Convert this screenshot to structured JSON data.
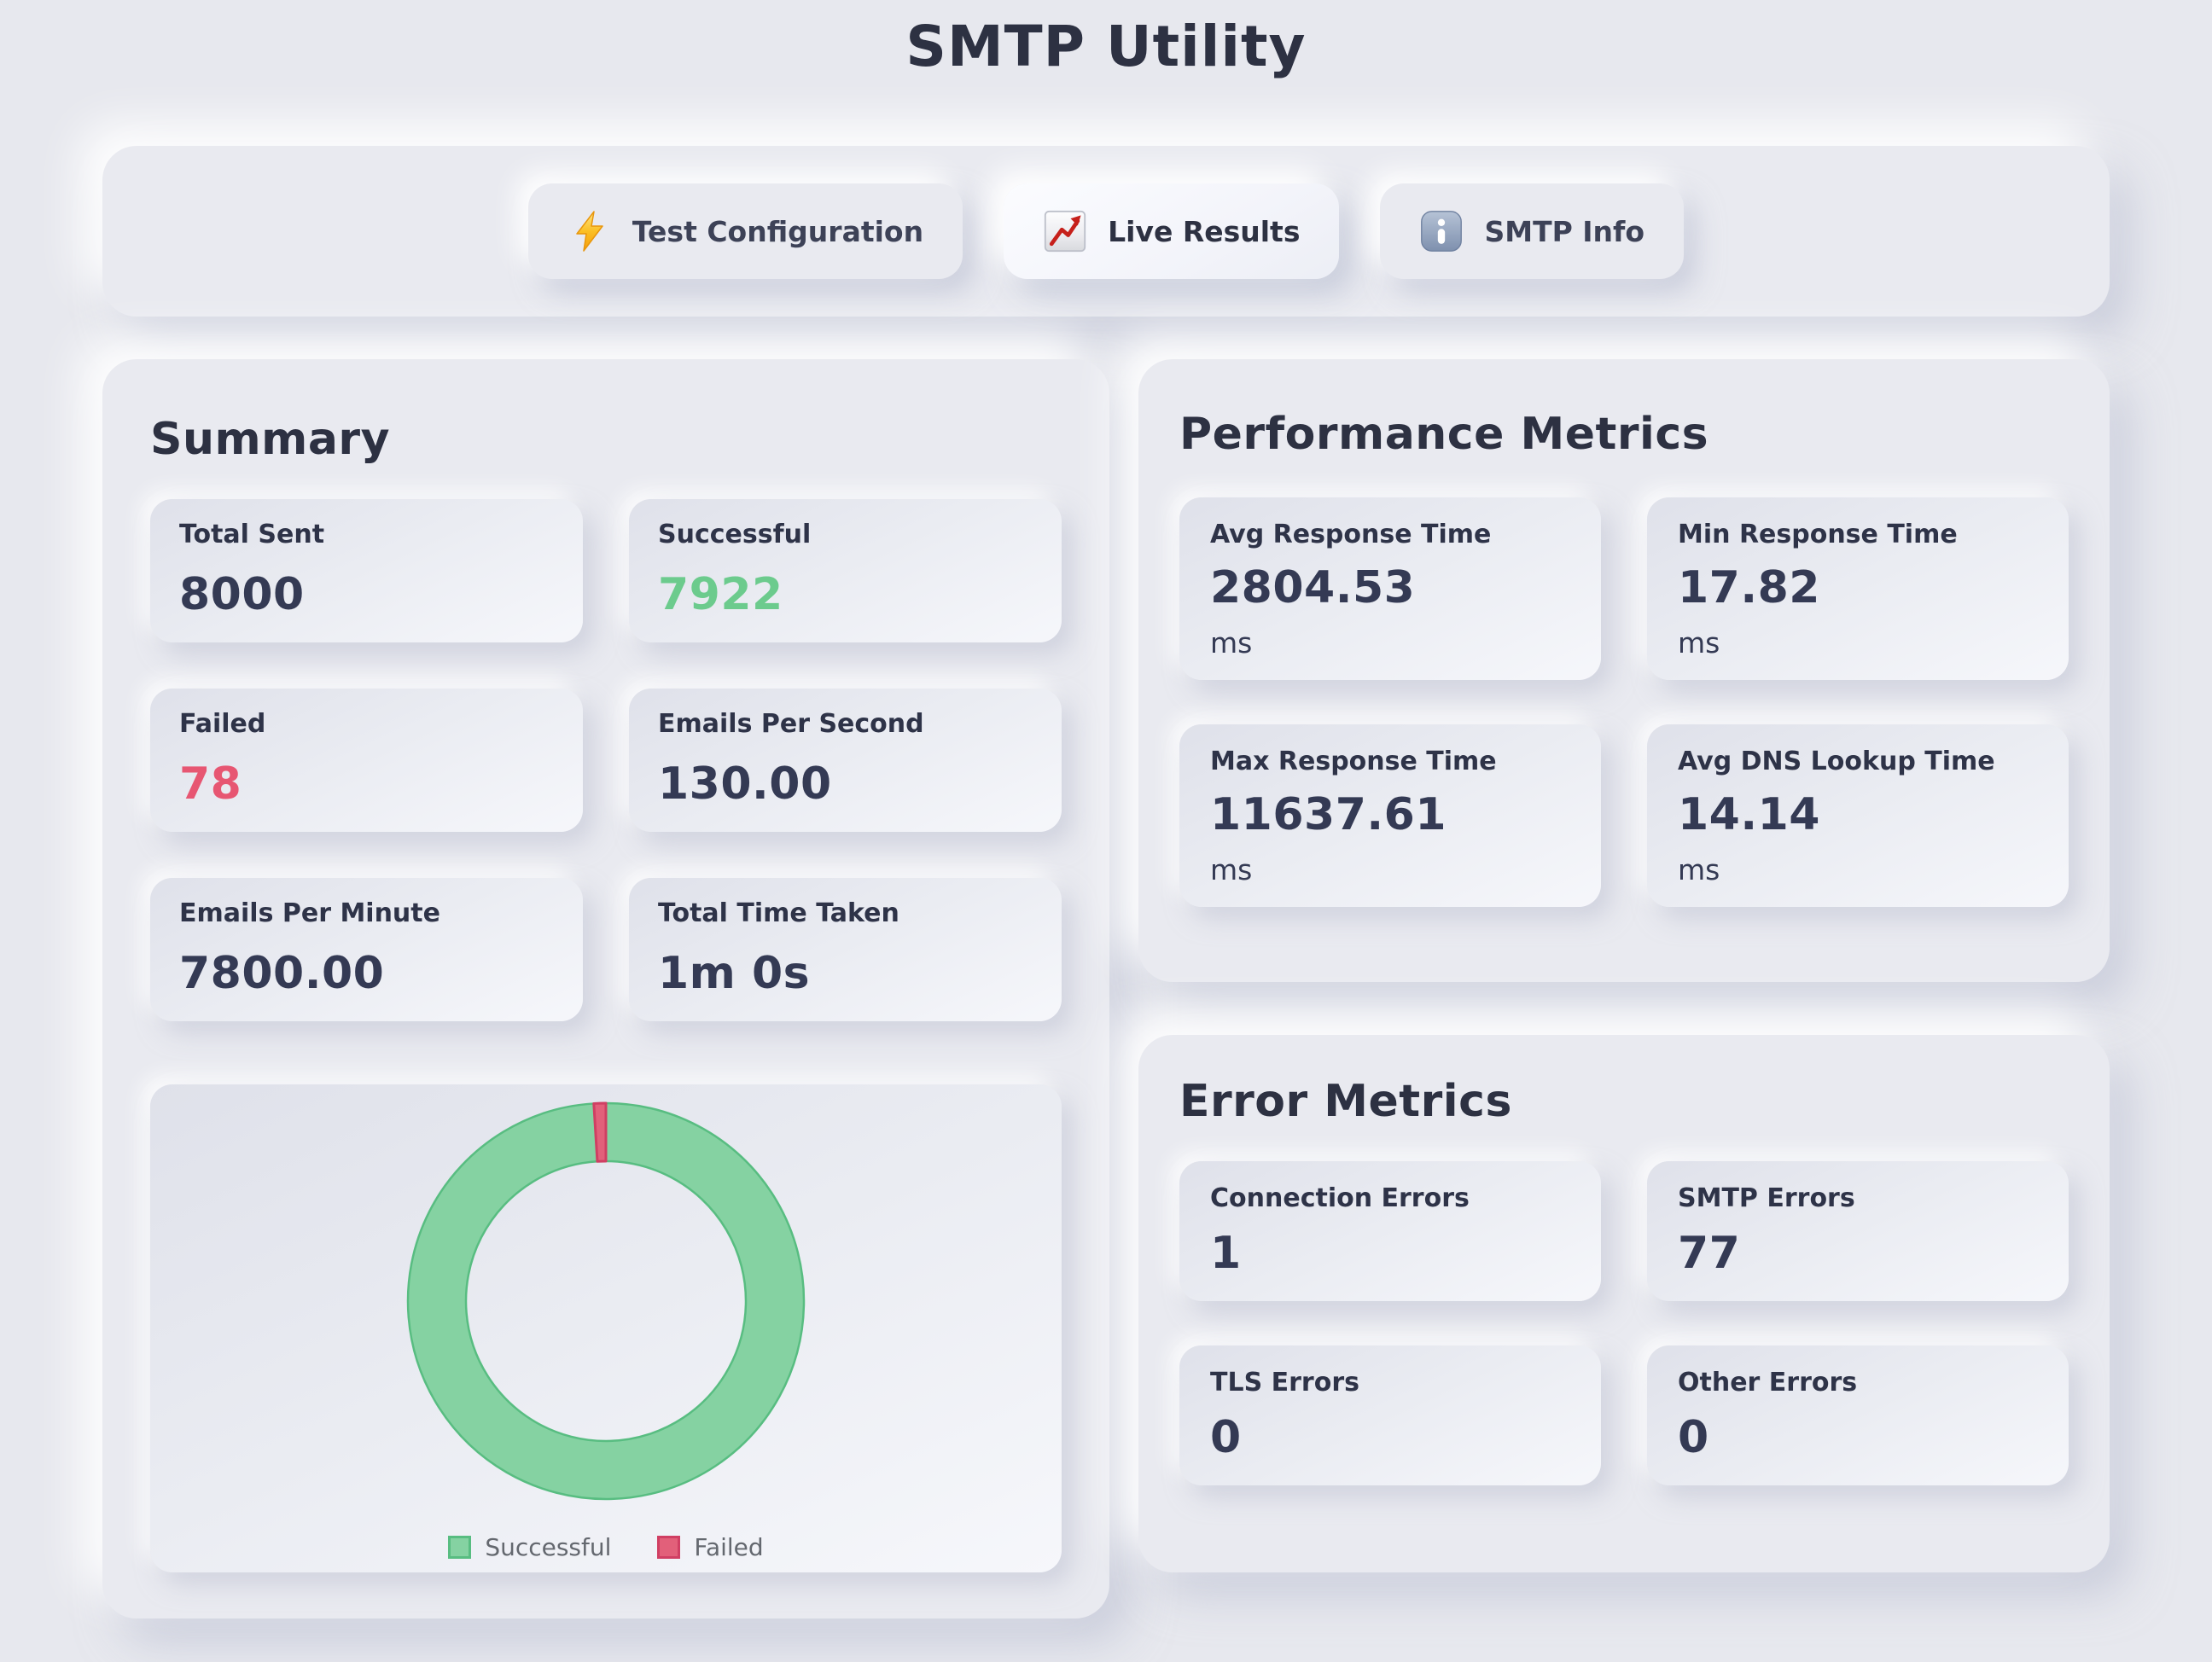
{
  "title": "SMTP Utility",
  "tabs": [
    {
      "label": "Test Configuration",
      "icon": "lightning-icon",
      "active": false
    },
    {
      "label": "Live Results",
      "icon": "chart-icon",
      "active": true
    },
    {
      "label": "SMTP Info",
      "icon": "info-icon",
      "active": false
    }
  ],
  "summary": {
    "heading": "Summary",
    "stats": [
      {
        "label": "Total Sent",
        "value": "8000",
        "color": "dark"
      },
      {
        "label": "Successful",
        "value": "7922",
        "color": "green"
      },
      {
        "label": "Failed",
        "value": "78",
        "color": "red"
      },
      {
        "label": "Emails Per Second",
        "value": "130.00",
        "color": "dark"
      },
      {
        "label": "Emails Per Minute",
        "value": "7800.00",
        "color": "dark"
      },
      {
        "label": "Total Time Taken",
        "value": "1m 0s",
        "color": "dark"
      }
    ]
  },
  "performance": {
    "heading": "Performance Metrics",
    "metrics": [
      {
        "label": "Avg Response Time",
        "value": "2804.53",
        "unit": "ms"
      },
      {
        "label": "Min Response Time",
        "value": "17.82",
        "unit": "ms"
      },
      {
        "label": "Max Response Time",
        "value": "11637.61",
        "unit": "ms"
      },
      {
        "label": "Avg DNS Lookup Time",
        "value": "14.14",
        "unit": "ms"
      }
    ]
  },
  "errors": {
    "heading": "Error Metrics",
    "metrics": [
      {
        "label": "Connection Errors",
        "value": "1"
      },
      {
        "label": "SMTP Errors",
        "value": "77"
      },
      {
        "label": "TLS Errors",
        "value": "0"
      },
      {
        "label": "Other Errors",
        "value": "0"
      }
    ]
  },
  "chart_data": {
    "type": "pie",
    "subtype": "doughnut",
    "labels": [
      "Successful",
      "Failed"
    ],
    "values": [
      7922,
      78
    ],
    "colors": {
      "successful_fill": "#85d2a2",
      "successful_border": "#58bd81",
      "failed_fill": "#e2607a",
      "failed_border": "#d03f63"
    },
    "legend_position": "bottom",
    "start_angle_deg": -90,
    "direction": "clockwise"
  },
  "colors": {
    "background": "#e7e8ee",
    "heading_ink": "#2d3142",
    "value_ink": "#343a54",
    "success_green": "#6ccb8d",
    "fail_red": "#e75672",
    "legend_text": "#64686f"
  }
}
